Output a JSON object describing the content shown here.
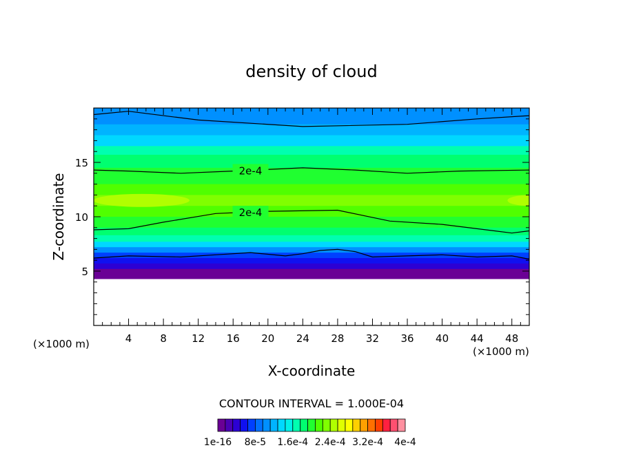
{
  "chart_data": {
    "type": "heatmap",
    "title": "density of cloud",
    "xlabel": "X-coordinate",
    "ylabel": "Z-coordinate",
    "x_unit": "(×1000 m)",
    "z_unit": "(×1000 m)",
    "xlim": [
      0,
      50
    ],
    "ylim": [
      0,
      20
    ],
    "x_ticks": [
      4,
      8,
      12,
      16,
      20,
      24,
      28,
      32,
      36,
      40,
      44,
      48
    ],
    "y_ticks": [
      5,
      10,
      15
    ],
    "contour_interval_text": "CONTOUR INTERVAL = 1.000E-04",
    "contour_labels": [
      "2e-4",
      "2e-4"
    ],
    "colorbar": {
      "colors": [
        "#6a0095",
        "#4b00b4",
        "#2c00d4",
        "#1010f0",
        "#0040ff",
        "#0070ff",
        "#0090ff",
        "#00b4ff",
        "#00d8ff",
        "#00f0e8",
        "#00ffb0",
        "#00ff70",
        "#20ff30",
        "#50ff00",
        "#80ff00",
        "#b0ff00",
        "#e0ff00",
        "#ffff00",
        "#ffd000",
        "#ffa000",
        "#ff7000",
        "#ff4000",
        "#ff2040",
        "#ff5070",
        "#ff90a0"
      ],
      "tick_labels": [
        "1e-16",
        "8e-5",
        "1.6e-4",
        "2.4e-4",
        "3.2e-4",
        "4e-4"
      ]
    },
    "bands": [
      {
        "z_bottom": 18.5,
        "z_top": 20,
        "color": "#0090ff"
      },
      {
        "z_bottom": 17.5,
        "z_top": 18.5,
        "color": "#00b4ff"
      },
      {
        "z_bottom": 16.5,
        "z_top": 17.5,
        "color": "#00d8ff"
      },
      {
        "z_bottom": 15.7,
        "z_top": 16.5,
        "color": "#00ffb0"
      },
      {
        "z_bottom": 14.5,
        "z_top": 15.7,
        "color": "#00ff70"
      },
      {
        "z_bottom": 13.0,
        "z_top": 14.5,
        "color": "#20ff30"
      },
      {
        "z_bottom": 12.0,
        "z_top": 13.0,
        "color": "#50ff00"
      },
      {
        "z_bottom": 11.0,
        "z_top": 12.0,
        "color": "#80ff00"
      },
      {
        "z_bottom": 10.0,
        "z_top": 11.0,
        "color": "#50ff00"
      },
      {
        "z_bottom": 9.0,
        "z_top": 10.0,
        "color": "#20ff30"
      },
      {
        "z_bottom": 8.3,
        "z_top": 9.0,
        "color": "#00ff70"
      },
      {
        "z_bottom": 7.7,
        "z_top": 8.3,
        "color": "#00ffb0"
      },
      {
        "z_bottom": 7.2,
        "z_top": 7.7,
        "color": "#00d8ff"
      },
      {
        "z_bottom": 6.7,
        "z_top": 7.2,
        "color": "#0090ff"
      },
      {
        "z_bottom": 6.2,
        "z_top": 6.7,
        "color": "#0040ff"
      },
      {
        "z_bottom": 5.7,
        "z_top": 6.2,
        "color": "#1010f0"
      },
      {
        "z_bottom": 5.2,
        "z_top": 5.7,
        "color": "#2c00d4"
      },
      {
        "z_bottom": 4.3,
        "z_top": 5.2,
        "color": "#6a0095"
      }
    ],
    "contours": [
      {
        "level": "upper",
        "points": [
          [
            0,
            19.4
          ],
          [
            4,
            19.7
          ],
          [
            12,
            18.9
          ],
          [
            24,
            18.3
          ],
          [
            36,
            18.5
          ],
          [
            44,
            19.0
          ],
          [
            50,
            19.3
          ]
        ]
      },
      {
        "level": "2e-4",
        "points": [
          [
            0,
            14.3
          ],
          [
            4,
            14.2
          ],
          [
            10,
            14.0
          ],
          [
            16,
            14.2
          ],
          [
            24,
            14.5
          ],
          [
            30,
            14.3
          ],
          [
            36,
            14.0
          ],
          [
            42,
            14.2
          ],
          [
            50,
            14.3
          ]
        ]
      },
      {
        "level": "2e-4",
        "points": [
          [
            0,
            8.8
          ],
          [
            4,
            8.9
          ],
          [
            8,
            9.5
          ],
          [
            14,
            10.3
          ],
          [
            20,
            10.5
          ],
          [
            28,
            10.6
          ],
          [
            34,
            9.6
          ],
          [
            40,
            9.3
          ],
          [
            46,
            8.7
          ],
          [
            48,
            8.5
          ],
          [
            50,
            8.7
          ]
        ]
      },
      {
        "level": "lower",
        "points": [
          [
            0,
            6.2
          ],
          [
            4,
            6.4
          ],
          [
            10,
            6.3
          ],
          [
            14,
            6.5
          ],
          [
            18,
            6.7
          ],
          [
            22,
            6.4
          ],
          [
            24,
            6.6
          ],
          [
            26,
            6.9
          ],
          [
            28,
            7.0
          ],
          [
            30,
            6.8
          ],
          [
            32,
            6.3
          ],
          [
            36,
            6.4
          ],
          [
            40,
            6.5
          ],
          [
            44,
            6.3
          ],
          [
            48,
            6.4
          ],
          [
            50,
            6.1
          ]
        ]
      }
    ],
    "bulges": [
      {
        "x_center": 5.5,
        "z_center": 11.5,
        "x_radius": 5.5,
        "z_radius": 0.6,
        "color": "#b0ff00"
      },
      {
        "x_center": 50.0,
        "z_center": 11.5,
        "x_radius": 2.5,
        "z_radius": 0.5,
        "color": "#b0ff00"
      }
    ]
  }
}
